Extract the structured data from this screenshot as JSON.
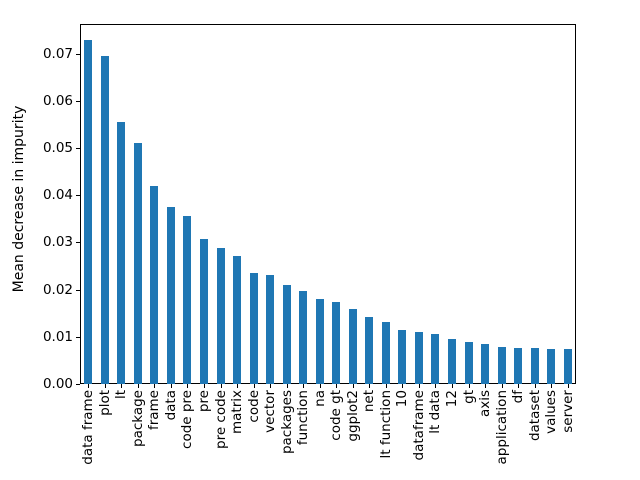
{
  "chart_data": {
    "type": "bar",
    "title": "",
    "xlabel": "",
    "ylabel": "Mean decrease in impurity",
    "categories": [
      "data frame",
      "plot",
      "lt",
      "package",
      "frame",
      "data",
      "code pre",
      "pre",
      "pre code",
      "matrix",
      "code",
      "vector",
      "packages",
      "function",
      "na",
      "code gt",
      "ggplot2",
      "net",
      "lt function",
      "10",
      "dataframe",
      "lt data",
      "12",
      "gt",
      "axis",
      "application",
      "df",
      "dataset",
      "values",
      "server"
    ],
    "values": [
      0.0729,
      0.0695,
      0.0555,
      0.051,
      0.0419,
      0.0375,
      0.0356,
      0.0308,
      0.0288,
      0.0271,
      0.0236,
      0.0232,
      0.021,
      0.0198,
      0.018,
      0.0174,
      0.0158,
      0.0141,
      0.0132,
      0.0115,
      0.0111,
      0.0107,
      0.0096,
      0.009,
      0.0085,
      0.0078,
      0.0077,
      0.0076,
      0.0075,
      0.0074
    ],
    "yticks": [
      "0.00",
      "0.01",
      "0.02",
      "0.03",
      "0.04",
      "0.05",
      "0.06",
      "0.07"
    ],
    "ylim": [
      0,
      0.0763
    ],
    "bar_color": "#1f77b4",
    "axis_color": "#000000",
    "text_color": "#000000",
    "background_color": "#ffffff",
    "grid": false,
    "legend": false,
    "x_tick_rotation_deg": 90
  }
}
